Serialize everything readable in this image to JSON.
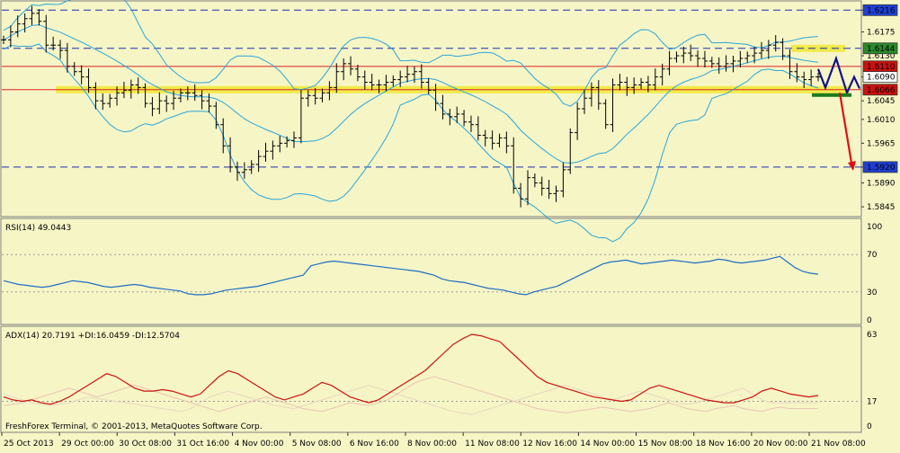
{
  "copyright": "FreshForex Terminal, © 2001-2013, MetaQuotes Software Corp.",
  "colors": {
    "background": "#f6f5c6",
    "bars": "#000000",
    "bollinger": "#2aa6dc",
    "rsi": "#1d6fc4",
    "adx": "#cc1111",
    "plus_di": "#e8d8c0",
    "minus_di": "#e8c4b4",
    "resistance_line": "#dd2222",
    "support_band": "#f1e93a",
    "dashed_level": "#1a2fb0",
    "forecast_blue": "#12128a",
    "forecast_red": "#dd1111",
    "level_label_green": "#2a8a2a",
    "level_label_red": "#cc1111",
    "level_label_blue": "#1f3fd4"
  },
  "chart_data": [
    {
      "type": "line",
      "panel": "price",
      "instrument_style": "ohlc-bars",
      "y_ticks": [
        "1.6216",
        "1.6175",
        "1.6130",
        "1.6090",
        "1.6045",
        "1.6010",
        "1.5965",
        "1.5920",
        "1.5890",
        "1.5845"
      ],
      "ylim": [
        1.5835,
        1.6225
      ],
      "levels": [
        {
          "value": "1.6216",
          "style": "dashed",
          "label_color": "blue"
        },
        {
          "value": "1.6144",
          "style": "dashed+yellow-band",
          "label_color": "green"
        },
        {
          "value": "1.6110",
          "style": "solid-red",
          "label_color": "red"
        },
        {
          "value": "1.6090",
          "style": "price",
          "label_color": "white"
        },
        {
          "value": "1.6066",
          "style": "solid-red+yellow-band",
          "label_color": "red"
        },
        {
          "value": "1.5920",
          "style": "dashed",
          "label_color": "blue"
        }
      ],
      "x_labels": [
        "25 Oct 2013",
        "29 Oct 00:00",
        "30 Oct 08:00",
        "31 Oct 16:00",
        "4 Nov 00:00",
        "5 Nov 08:00",
        "6 Nov 16:00",
        "8 Nov 00:00",
        "11 Nov 08:00",
        "12 Nov 16:00",
        "14 Nov 00:00",
        "15 Nov 08:00",
        "18 Nov 16:00",
        "20 Nov 00:00",
        "21 Nov 08:00"
      ],
      "close_path": [
        1.616,
        1.6175,
        1.619,
        1.62,
        1.621,
        1.6195,
        1.615,
        1.615,
        1.614,
        1.611,
        1.61,
        1.609,
        1.607,
        1.6045,
        1.604,
        1.605,
        1.606,
        1.6065,
        1.6075,
        1.607,
        1.604,
        1.603,
        1.6045,
        1.604,
        1.605,
        1.606,
        1.606,
        1.6055,
        1.6045,
        1.6035,
        1.6,
        1.596,
        1.592,
        1.591,
        1.5915,
        1.5925,
        1.594,
        1.595,
        1.596,
        1.5965,
        1.597,
        1.5975,
        1.605,
        1.6055,
        1.605,
        1.606,
        1.607,
        1.61,
        1.6115,
        1.6105,
        1.609,
        1.608,
        1.6075,
        1.6075,
        1.608,
        1.6085,
        1.609,
        1.6095,
        1.61,
        1.608,
        1.6065,
        1.604,
        1.602,
        1.6015,
        1.602,
        1.6005,
        1.6,
        1.598,
        1.5975,
        1.5965,
        1.5975,
        1.596,
        1.588,
        1.586,
        1.59,
        1.589,
        1.588,
        1.587,
        1.5875,
        1.5915,
        1.5985,
        1.603,
        1.605,
        1.607,
        1.604,
        1.6,
        1.6075,
        1.608,
        1.607,
        1.6075,
        1.608,
        1.6075,
        1.609,
        1.6105,
        1.6125,
        1.613,
        1.6135,
        1.613,
        1.6125,
        1.612,
        1.6115,
        1.611,
        1.6115,
        1.612,
        1.6125,
        1.613,
        1.6135,
        1.614,
        1.615,
        1.6155,
        1.613,
        1.61,
        1.609,
        1.6085,
        1.609,
        1.609
      ]
    },
    {
      "type": "line",
      "panel": "rsi",
      "label": "RSI(14) 49.0443",
      "y_ticks": [
        "100",
        "70",
        "30",
        "0"
      ],
      "levels": [
        70,
        30
      ],
      "ylim": [
        0,
        100
      ],
      "values": [
        42,
        40,
        38,
        37,
        36,
        35,
        36,
        38,
        40,
        42,
        41,
        40,
        38,
        36,
        35,
        36,
        37,
        38,
        37,
        35,
        34,
        33,
        32,
        31,
        28,
        27,
        27,
        28,
        30,
        32,
        33,
        34,
        35,
        36,
        38,
        40,
        42,
        44,
        46,
        48,
        58,
        60,
        62,
        63,
        62,
        61,
        60,
        59,
        58,
        57,
        56,
        55,
        54,
        53,
        52,
        50,
        48,
        44,
        42,
        41,
        40,
        38,
        36,
        34,
        33,
        32,
        30,
        28,
        27,
        30,
        32,
        34,
        36,
        40,
        44,
        48,
        52,
        56,
        60,
        62,
        63,
        64,
        62,
        60,
        61,
        62,
        63,
        64,
        63,
        62,
        61,
        62,
        63,
        65,
        64,
        62,
        61,
        62,
        63,
        64,
        66,
        68,
        62,
        56,
        52,
        50,
        49
      ]
    },
    {
      "type": "line",
      "panel": "adx",
      "label": "ADX(14) 20.7191 +DI:16.0459 -DI:12.5704",
      "y_ticks": [
        "63",
        "17",
        "0"
      ],
      "ylim": [
        0,
        63
      ],
      "series": [
        {
          "name": "ADX",
          "values": [
            20,
            18,
            17,
            18,
            16,
            15,
            17,
            20,
            24,
            28,
            32,
            36,
            34,
            30,
            26,
            24,
            24,
            25,
            24,
            22,
            20,
            22,
            28,
            34,
            38,
            36,
            32,
            28,
            24,
            20,
            18,
            20,
            22,
            26,
            30,
            28,
            24,
            20,
            18,
            16,
            18,
            22,
            26,
            30,
            34,
            38,
            44,
            50,
            56,
            60,
            63,
            62,
            60,
            58,
            52,
            46,
            40,
            34,
            30,
            28,
            26,
            24,
            22,
            20,
            19,
            18,
            17,
            18,
            22,
            26,
            28,
            26,
            24,
            22,
            20,
            18,
            17,
            16,
            16,
            18,
            20,
            24,
            26,
            24,
            22,
            21,
            20,
            21
          ]
        },
        {
          "name": "+DI",
          "values": [
            22,
            20,
            18,
            16,
            15,
            14,
            15,
            16,
            18,
            20,
            19,
            18,
            17,
            16,
            15,
            14,
            13,
            12,
            11,
            10,
            12,
            16,
            20,
            22,
            24,
            22,
            20,
            18,
            16,
            14,
            13,
            12,
            14,
            16,
            18,
            20,
            22,
            24,
            26,
            28,
            26,
            24,
            22,
            20,
            18,
            16,
            14,
            12,
            10,
            9,
            8,
            10,
            12,
            14,
            16,
            18,
            20,
            22,
            24,
            26,
            28,
            26,
            24,
            22,
            20,
            18,
            20,
            22,
            24,
            22,
            20,
            18,
            16,
            15,
            16,
            18,
            20,
            22,
            24,
            26,
            22,
            18,
            16,
            16,
            16,
            16,
            16,
            16
          ]
        },
        {
          "name": "-DI",
          "values": [
            14,
            15,
            16,
            18,
            20,
            22,
            24,
            26,
            24,
            22,
            20,
            22,
            24,
            26,
            28,
            26,
            24,
            22,
            20,
            18,
            16,
            14,
            12,
            10,
            12,
            14,
            16,
            18,
            20,
            18,
            16,
            14,
            12,
            11,
            10,
            12,
            14,
            16,
            15,
            14,
            16,
            18,
            22,
            26,
            30,
            32,
            34,
            32,
            30,
            28,
            26,
            24,
            22,
            20,
            18,
            16,
            14,
            12,
            11,
            10,
            9,
            10,
            11,
            12,
            13,
            12,
            11,
            10,
            11,
            12,
            14,
            16,
            14,
            12,
            11,
            10,
            12,
            13,
            14,
            12,
            11,
            10,
            12,
            13,
            12,
            12,
            12,
            12
          ]
        }
      ]
    }
  ]
}
